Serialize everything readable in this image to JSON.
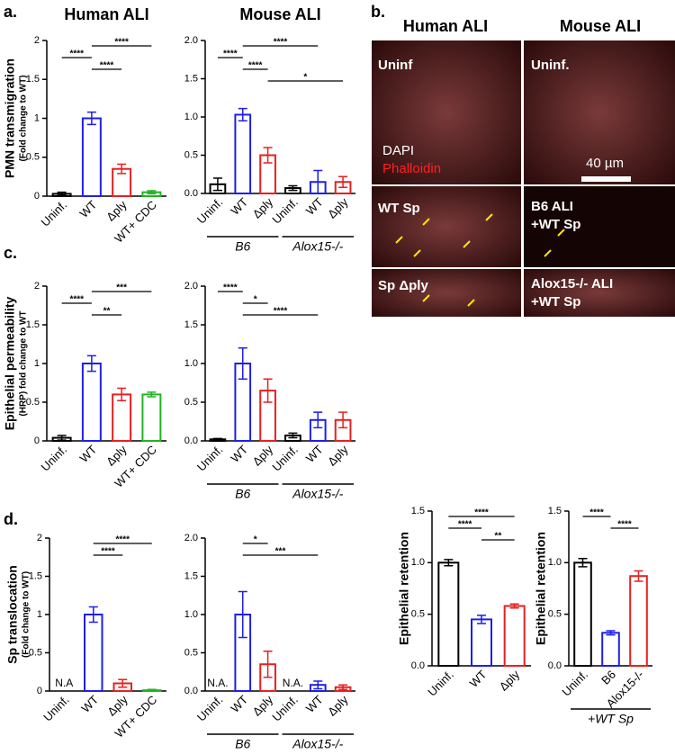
{
  "panels": [
    "a.",
    "b.",
    "c.",
    "d."
  ],
  "micrographs": {
    "columns": [
      "Human ALI",
      "Mouse ALI"
    ],
    "rows": [
      [
        [
          "Uninf"
        ],
        [
          "Uninf."
        ]
      ],
      [
        [
          "WT Sp"
        ],
        [
          "B6 ALI",
          "+WT Sp"
        ]
      ],
      [
        [
          "Sp Δply"
        ],
        [
          "Alox15-/- ALI",
          "+WT Sp"
        ]
      ]
    ],
    "stains": [
      "DAPI",
      "Phalloidin"
    ],
    "scale_bar": "40 µm"
  },
  "chart_data": [
    {
      "type": "bar",
      "title": "Human ALI",
      "y_label": "PMN transmigration",
      "y_label_sub": "(Fold change to WT)",
      "categories": [
        "Uninf.",
        "WT",
        "Δply",
        "WT+ CDC"
      ],
      "colors": [
        "#000000",
        "#1f1fe6",
        "#e62020",
        "#22b322"
      ],
      "values": [
        0.03,
        1.0,
        0.35,
        0.05
      ],
      "errors": [
        0.02,
        0.08,
        0.06,
        0.02
      ],
      "ylim": [
        0,
        2
      ],
      "yticks": [
        0,
        0.5,
        1,
        1.5,
        2
      ],
      "brackets": [
        {
          "from": 1,
          "to": 3,
          "label": "****"
        },
        {
          "from": 0,
          "to": 1,
          "label": "****"
        },
        {
          "from": 1,
          "to": 2,
          "label": "****"
        }
      ]
    },
    {
      "type": "bar",
      "title": "Mouse ALI",
      "categories": [
        "Uninf.",
        "WT",
        "Δply",
        "Uninf.",
        "WT",
        "Δply"
      ],
      "colors": [
        "#000000",
        "#1f1fe6",
        "#e62020",
        "#000000",
        "#1f1fe6",
        "#e62020"
      ],
      "values": [
        0.12,
        1.03,
        0.5,
        0.07,
        0.15,
        0.15
      ],
      "errors": [
        0.08,
        0.08,
        0.1,
        0.03,
        0.15,
        0.07
      ],
      "ylim": [
        0,
        2
      ],
      "yticks": [
        {
          "value": 0,
          "label": "0.0"
        },
        0.5,
        {
          "value": 1,
          "label": "1.0"
        },
        1.5,
        {
          "value": 2,
          "label": "2.0"
        }
      ],
      "brackets": [
        {
          "from": 1,
          "to": 4,
          "label": "****"
        },
        {
          "from": 0,
          "to": 1,
          "label": "****"
        },
        {
          "from": 1,
          "to": 2,
          "label": "****"
        },
        {
          "from": 2,
          "to": 5,
          "label": "*"
        }
      ],
      "groups": [
        {
          "label": "B6",
          "from": 0,
          "to": 2
        },
        {
          "label": "Alox15-/-",
          "from": 3,
          "to": 5
        }
      ]
    },
    {
      "type": "bar",
      "y_label": "Epithelial permeability",
      "y_label_sub": "(HRP) fold change to WT",
      "categories": [
        "Uninf.",
        "WT",
        "Δply",
        "WT+ CDC"
      ],
      "colors": [
        "#000000",
        "#1f1fe6",
        "#e62020",
        "#22b322"
      ],
      "values": [
        0.04,
        1.0,
        0.6,
        0.6
      ],
      "errors": [
        0.03,
        0.1,
        0.08,
        0.03
      ],
      "ylim": [
        0,
        2
      ],
      "yticks": [
        0,
        0.5,
        1,
        1.5,
        2
      ],
      "brackets": [
        {
          "from": 1,
          "to": 3,
          "label": "***"
        },
        {
          "from": 0,
          "to": 1,
          "label": "****"
        },
        {
          "from": 1,
          "to": 2,
          "label": "**"
        }
      ]
    },
    {
      "type": "bar",
      "categories": [
        "Uninf.",
        "WT",
        "Δply",
        "Uninf.",
        "WT",
        "Δply"
      ],
      "colors": [
        "#000000",
        "#1f1fe6",
        "#e62020",
        "#000000",
        "#1f1fe6",
        "#e62020"
      ],
      "values": [
        0.02,
        1.0,
        0.65,
        0.07,
        0.27,
        0.27
      ],
      "errors": [
        0.01,
        0.2,
        0.15,
        0.03,
        0.1,
        0.1
      ],
      "ylim": [
        0,
        2
      ],
      "yticks": [
        {
          "value": 0,
          "label": "0.0"
        },
        0.5,
        {
          "value": 1,
          "label": "1.0"
        },
        1.5,
        {
          "value": 2,
          "label": "2.0"
        }
      ],
      "brackets": [
        {
          "from": 0,
          "to": 1,
          "label": "****"
        },
        {
          "from": 1,
          "to": 2,
          "label": "*"
        },
        {
          "from": 1,
          "to": 4,
          "label": "****"
        }
      ],
      "groups": [
        {
          "label": "B6",
          "from": 0,
          "to": 2
        },
        {
          "label": "Alox15-/-",
          "from": 3,
          "to": 5
        }
      ]
    },
    {
      "type": "bar",
      "y_label": "Sp translocation",
      "y_label_sub": "(Fold change to WT)",
      "categories": [
        "Uninf.",
        "WT",
        "Δply",
        "WT+ CDC"
      ],
      "colors": [
        "#000000",
        "#1f1fe6",
        "#e62020",
        "#22b322"
      ],
      "values": [
        null,
        1.0,
        0.1,
        0.01
      ],
      "errors": [
        null,
        0.1,
        0.05,
        0.01
      ],
      "value_labels": [
        "N.A",
        null,
        null,
        null
      ],
      "ylim": [
        0,
        2
      ],
      "yticks": [
        0,
        0.5,
        1,
        1.5,
        2
      ],
      "brackets": [
        {
          "from": 1,
          "to": 3,
          "label": "****"
        },
        {
          "from": 1,
          "to": 2,
          "label": "****"
        }
      ]
    },
    {
      "type": "bar",
      "categories": [
        "Uninf.",
        "WT",
        "Δply",
        "Uninf.",
        "WT",
        "Δply"
      ],
      "colors": [
        "#000000",
        "#1f1fe6",
        "#e62020",
        "#000000",
        "#1f1fe6",
        "#e62020"
      ],
      "values": [
        null,
        1.0,
        0.35,
        null,
        0.08,
        0.05
      ],
      "errors": [
        null,
        0.3,
        0.17,
        null,
        0.05,
        0.03
      ],
      "value_labels": [
        "N.A.",
        null,
        null,
        "N.A.",
        null,
        null
      ],
      "ylim": [
        0,
        2
      ],
      "yticks": [
        {
          "value": 0,
          "label": "0.0"
        },
        0.5,
        {
          "value": 1,
          "label": "1.0"
        },
        1.5,
        {
          "value": 2,
          "label": "2.0"
        }
      ],
      "brackets": [
        {
          "from": 1,
          "to": 2,
          "label": "*"
        },
        {
          "from": 1,
          "to": 4,
          "label": "***"
        }
      ],
      "groups": [
        {
          "label": "B6",
          "from": 0,
          "to": 2
        },
        {
          "label": "Alox15-/-",
          "from": 3,
          "to": 5
        }
      ]
    },
    {
      "type": "bar",
      "y_label": "Epithelial retention",
      "categories": [
        "Uninf.",
        "WT",
        "Δply"
      ],
      "colors": [
        "#000000",
        "#1f1fe6",
        "#e62020"
      ],
      "values": [
        1.0,
        0.45,
        0.58
      ],
      "errors": [
        0.03,
        0.04,
        0.02
      ],
      "ylim": [
        0,
        1.5
      ],
      "yticks": [
        {
          "value": 0,
          "label": "0.0"
        },
        0.5,
        {
          "value": 1,
          "label": "1.0"
        },
        1.5
      ],
      "brackets": [
        {
          "from": 0,
          "to": 2,
          "label": "****"
        },
        {
          "from": 0,
          "to": 1,
          "label": "****"
        },
        {
          "from": 1,
          "to": 2,
          "label": "**"
        }
      ]
    },
    {
      "type": "bar",
      "y_label": "Epithelial retention",
      "categories": [
        "Uninf.",
        "B6",
        "Alox15-/-"
      ],
      "colors": [
        "#000000",
        "#1f1fe6",
        "#e62020"
      ],
      "values": [
        1.0,
        0.32,
        0.87
      ],
      "errors": [
        0.04,
        0.02,
        0.05
      ],
      "ylim": [
        0,
        1.5
      ],
      "yticks": [
        {
          "value": 0,
          "label": "0.0"
        },
        0.5,
        {
          "value": 1,
          "label": "1.0"
        },
        1.5
      ],
      "brackets": [
        {
          "from": 0,
          "to": 1,
          "label": "****"
        },
        {
          "from": 1,
          "to": 2,
          "label": "****"
        }
      ],
      "groups": [
        {
          "label": "+WT Sp",
          "from": 0,
          "to": 2
        }
      ]
    }
  ]
}
